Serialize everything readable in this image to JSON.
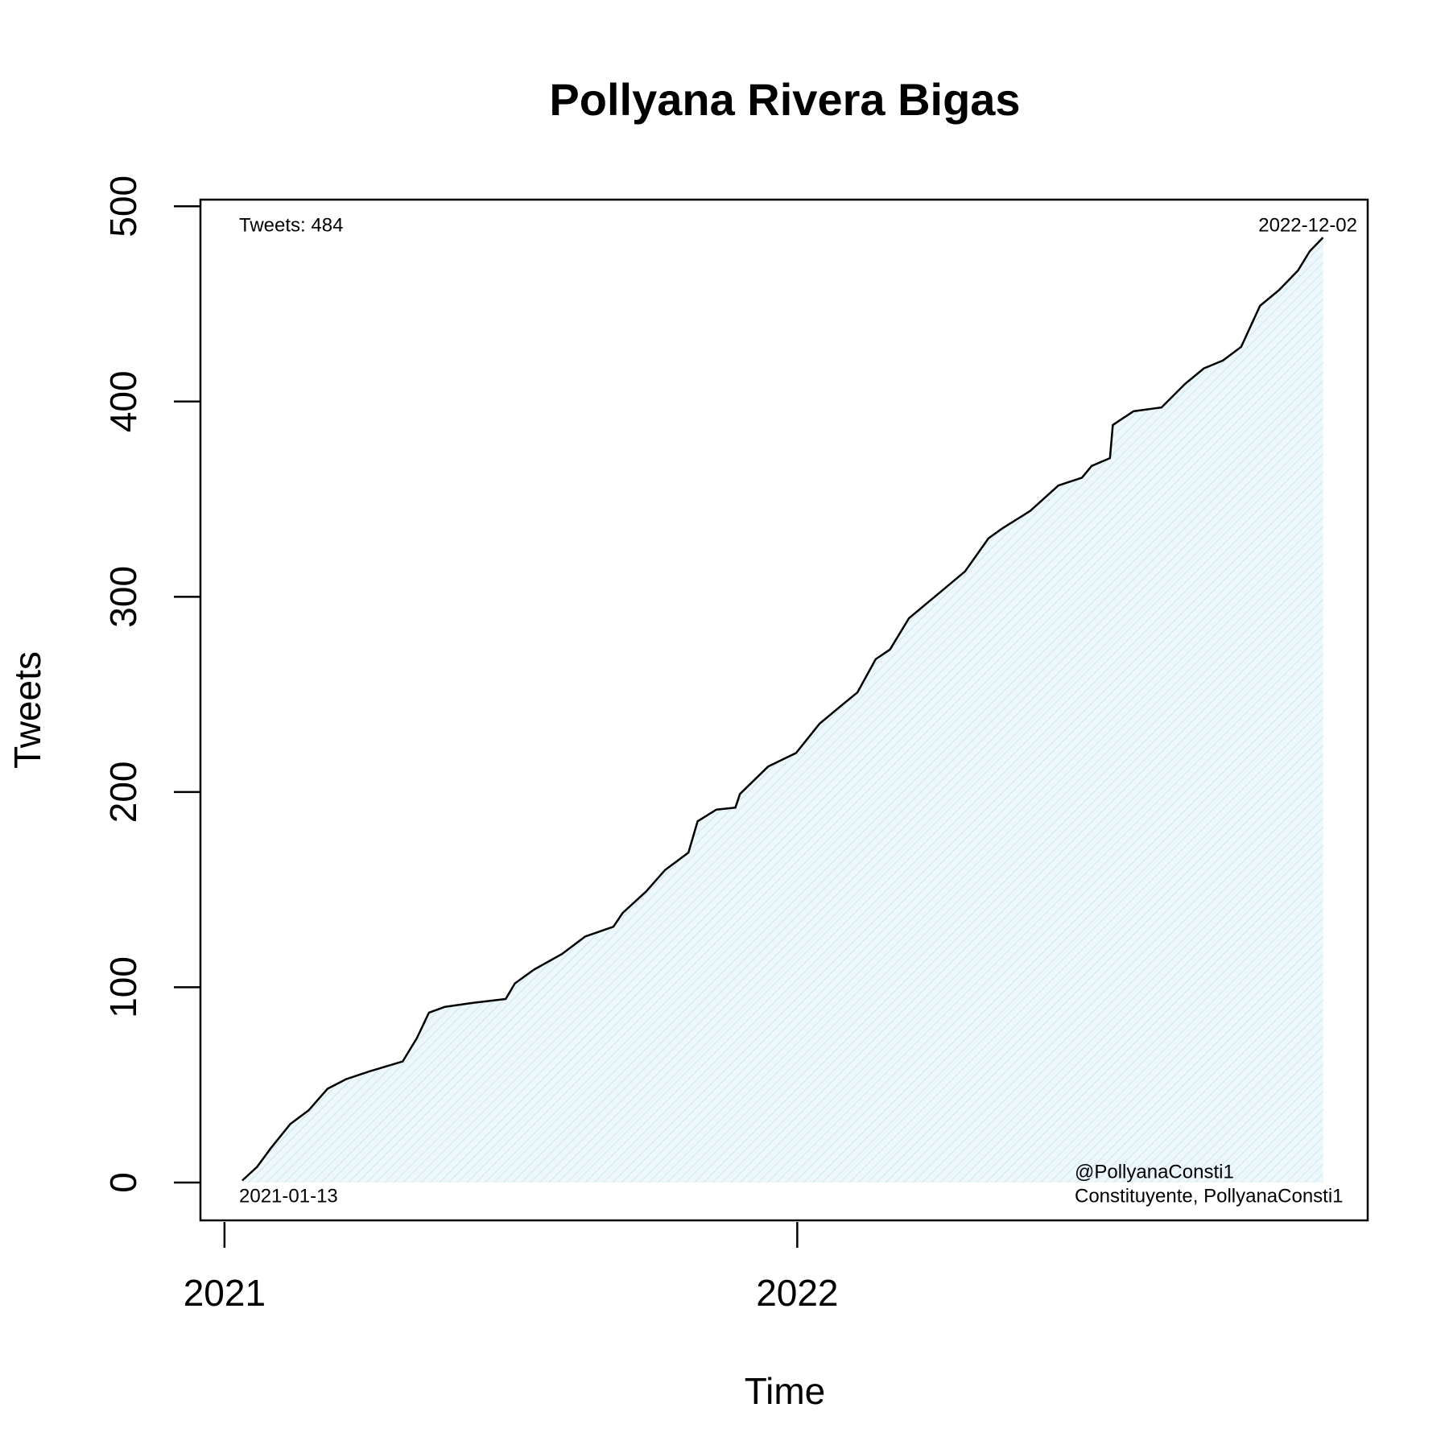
{
  "chart_data": {
    "type": "area-line",
    "title": "Pollyana Rivera Bigas",
    "x_label": "Time",
    "y_label": "Tweets",
    "annotations": [
      "Tweets: 484",
      "2022-12-02",
      "2021-01-13",
      "@PollyanaConsti1",
      "Constituyente, PollyanaConsti1"
    ],
    "x": [
      2021.031,
      2021.057,
      2021.082,
      2021.115,
      2021.147,
      2021.18,
      2021.213,
      2021.254,
      2021.311,
      2021.336,
      2021.357,
      2021.385,
      2021.434,
      2021.491,
      2021.507,
      2021.54,
      2021.589,
      2021.63,
      2021.679,
      2021.695,
      2021.736,
      2021.769,
      2021.81,
      2021.826,
      2021.859,
      2021.892,
      2021.9,
      2021.949,
      2021.998,
      2022.039,
      2022.08,
      2022.105,
      2022.137,
      2022.162,
      2022.195,
      2022.244,
      2022.293,
      2022.334,
      2022.358,
      2022.407,
      2022.456,
      2022.497,
      2022.514,
      2022.546,
      2022.551,
      2022.587,
      2022.636,
      2022.677,
      2022.71,
      2022.743,
      2022.775,
      2022.808,
      2022.841,
      2022.874,
      2022.895,
      2022.918
    ],
    "series": [
      {
        "color": "#000000",
        "fill": "#d6ecf3",
        "values": [
          1,
          8,
          18,
          30,
          37,
          48,
          53,
          57,
          62,
          74,
          87,
          90,
          92,
          94,
          102,
          109,
          117,
          126,
          131,
          138,
          149,
          160,
          169,
          185,
          191,
          192,
          199,
          213,
          220,
          235,
          245,
          251,
          268,
          273,
          289,
          301,
          313,
          330,
          335,
          344,
          357,
          361,
          367,
          371,
          388,
          395,
          397,
          409,
          417,
          421,
          428,
          449,
          457,
          467,
          477,
          484
        ]
      }
    ],
    "xlim": [
      2020.958,
      2022.996
    ],
    "ylim": [
      -19.4,
      503.4
    ],
    "xticks": [
      2021,
      2022
    ],
    "yticks": [
      0,
      100,
      200,
      300,
      400,
      500
    ]
  }
}
